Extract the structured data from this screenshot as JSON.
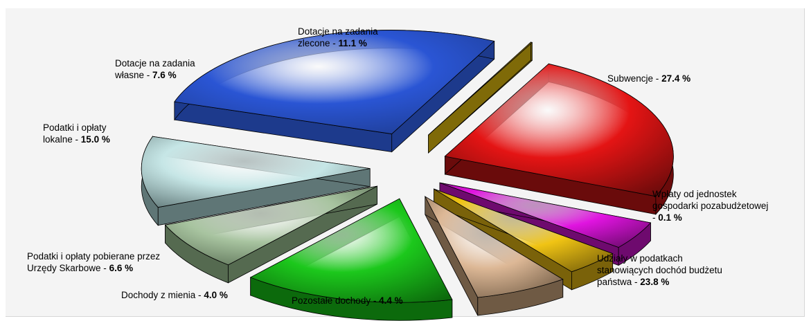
{
  "chart_data": {
    "type": "pie",
    "variant": "3d-exploded",
    "slices": [
      {
        "label_lines": [
          "Subwencje -"
        ],
        "value_text": "27.4 %",
        "value": 27.4,
        "color": "#2a55d4",
        "side": "#1d3a8c"
      },
      {
        "label_lines": [
          "Wpłaty od jednostek",
          "gospodarki pozabudżetowej",
          "-"
        ],
        "value_text": "0.1 %",
        "value": 0.1,
        "color": "#c8a41c",
        "side": "#7f6a08"
      },
      {
        "label_lines": [
          "Udziały w podatkach",
          "stanowiących dochód budżetu",
          "państwa -"
        ],
        "value_text": "23.8 %",
        "value": 23.8,
        "color": "#e41414",
        "side": "#6a0b0b"
      },
      {
        "label_lines": [
          "Pozostałe dochody -"
        ],
        "value_text": "4.4 %",
        "value": 4.4,
        "color": "#e014e0",
        "side": "#6e0a6e"
      },
      {
        "label_lines": [
          "Dochody z mienia -"
        ],
        "value_text": "4.0 %",
        "value": 4.0,
        "color": "#f0c414",
        "side": "#7a620a"
      },
      {
        "label_lines": [
          "Podatki i opłaty pobierane przez",
          "Urzędy Skarbowe -"
        ],
        "value_text": "6.6 %",
        "value": 6.6,
        "color": "#ddb896",
        "side": "#6f5a44"
      },
      {
        "label_lines": [
          "Podatki i opłaty",
          "lokalne -"
        ],
        "value_text": "15.0 %",
        "value": 15.0,
        "color": "#1cc81c",
        "side": "#0c6a0c"
      },
      {
        "label_lines": [
          "Dotacje na zadania",
          "własne -"
        ],
        "value_text": "7.6 %",
        "value": 7.6,
        "color": "#a8c4a0",
        "side": "#556a50"
      },
      {
        "label_lines": [
          "Dotacje na zadania",
          "zlecone -"
        ],
        "value_text": "11.1 %",
        "value": 11.1,
        "color": "#c6e6e6",
        "side": "#5f7676"
      }
    ],
    "legend": "none",
    "labels": "outside"
  }
}
